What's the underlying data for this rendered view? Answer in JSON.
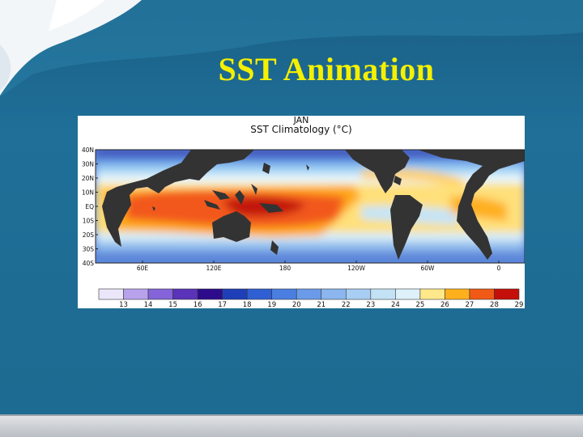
{
  "slide": {
    "title": "SST Animation",
    "colors": {
      "background": "#1f6e96",
      "title": "#f4f000",
      "bottom_bar": "#c9cdd1"
    }
  },
  "figure": {
    "month": "JAN",
    "title": "SST Climatology (°C)",
    "lat_ticks": [
      "40N",
      "30N",
      "20N",
      "10N",
      "EQ",
      "10S",
      "20S",
      "30S",
      "40S"
    ],
    "lon_ticks": [
      "60E",
      "120E",
      "180",
      "120W",
      "60W",
      "0"
    ],
    "colorbar": {
      "labels": [
        "13",
        "14",
        "15",
        "16",
        "17",
        "18",
        "19",
        "20",
        "21",
        "22",
        "23",
        "24",
        "25",
        "26",
        "27",
        "28",
        "29"
      ],
      "colors": [
        "#ece6fb",
        "#b9a2ec",
        "#8464d8",
        "#5a33b8",
        "#2c0c8c",
        "#1e3fb8",
        "#2f5fd2",
        "#4a7ee0",
        "#6b9be8",
        "#8bb6ef",
        "#a8cef3",
        "#c4e2f6",
        "#def0f9",
        "#ffe88a",
        "#ffb01c",
        "#f05a14",
        "#c40f0a"
      ]
    }
  }
}
